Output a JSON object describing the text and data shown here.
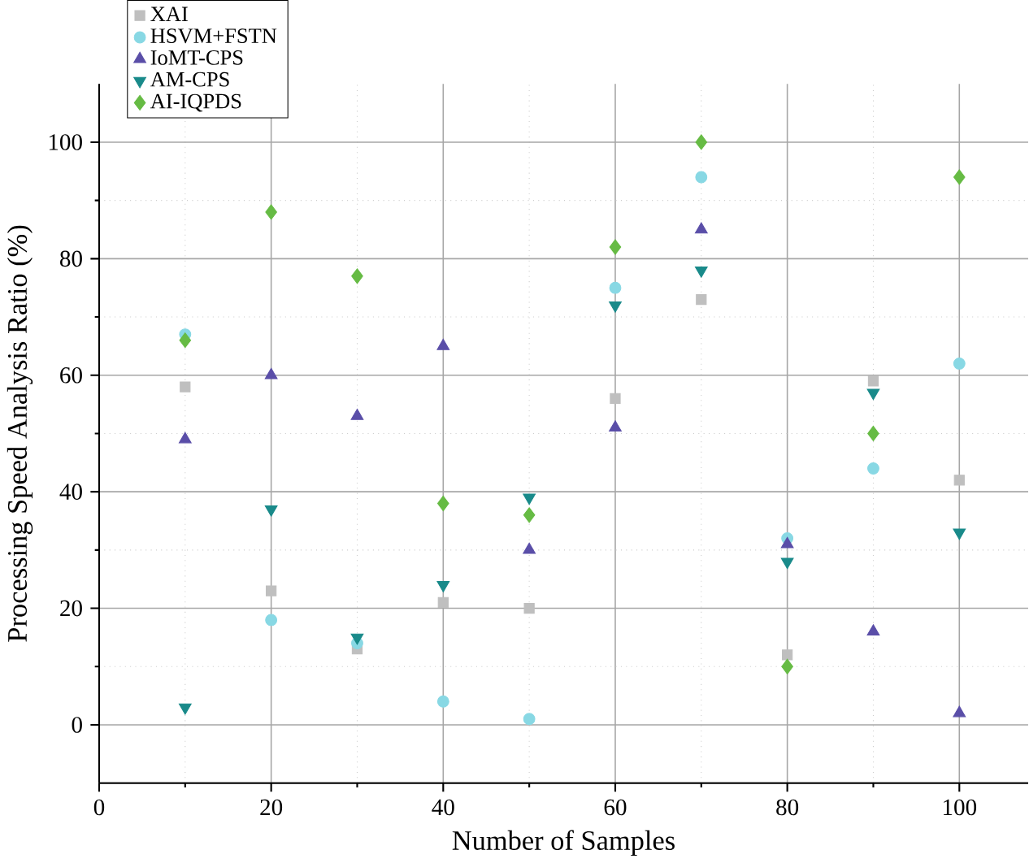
{
  "chart_data": {
    "type": "scatter",
    "xlabel": "Number of Samples",
    "ylabel": "Processing Speed Analysis Ratio (%)",
    "x": [
      10,
      20,
      30,
      40,
      50,
      60,
      70,
      80,
      90,
      100
    ],
    "series": [
      {
        "name": "XAI",
        "color": "#bfbfbf",
        "marker": "square",
        "values": [
          58,
          23,
          13,
          21,
          20,
          56,
          73,
          12,
          59,
          42
        ]
      },
      {
        "name": "HSVM+FSTN",
        "color": "#88d8e4",
        "marker": "circle",
        "values": [
          67,
          18,
          14,
          4,
          1,
          75,
          94,
          32,
          44,
          62
        ]
      },
      {
        "name": "IoMT-CPS",
        "color": "#5a4ea8",
        "marker": "triangle",
        "values": [
          49,
          60,
          53,
          65,
          30,
          51,
          85,
          31,
          16,
          2
        ]
      },
      {
        "name": "AM-CPS",
        "color": "#198a8a",
        "marker": "triangle-down",
        "values": [
          3,
          37,
          15,
          24,
          39,
          72,
          78,
          28,
          57,
          33
        ]
      },
      {
        "name": "AI-IQPDS",
        "color": "#66bb44",
        "marker": "diamond",
        "values": [
          66,
          88,
          77,
          38,
          36,
          82,
          100,
          10,
          50,
          94
        ]
      }
    ],
    "xlim": [
      0,
      108
    ],
    "ylim": [
      -10,
      110
    ],
    "xticks": [
      0,
      20,
      40,
      60,
      80,
      100
    ],
    "yticks": [
      0,
      20,
      40,
      60,
      80,
      100
    ],
    "grid": true,
    "legend": "top left"
  }
}
